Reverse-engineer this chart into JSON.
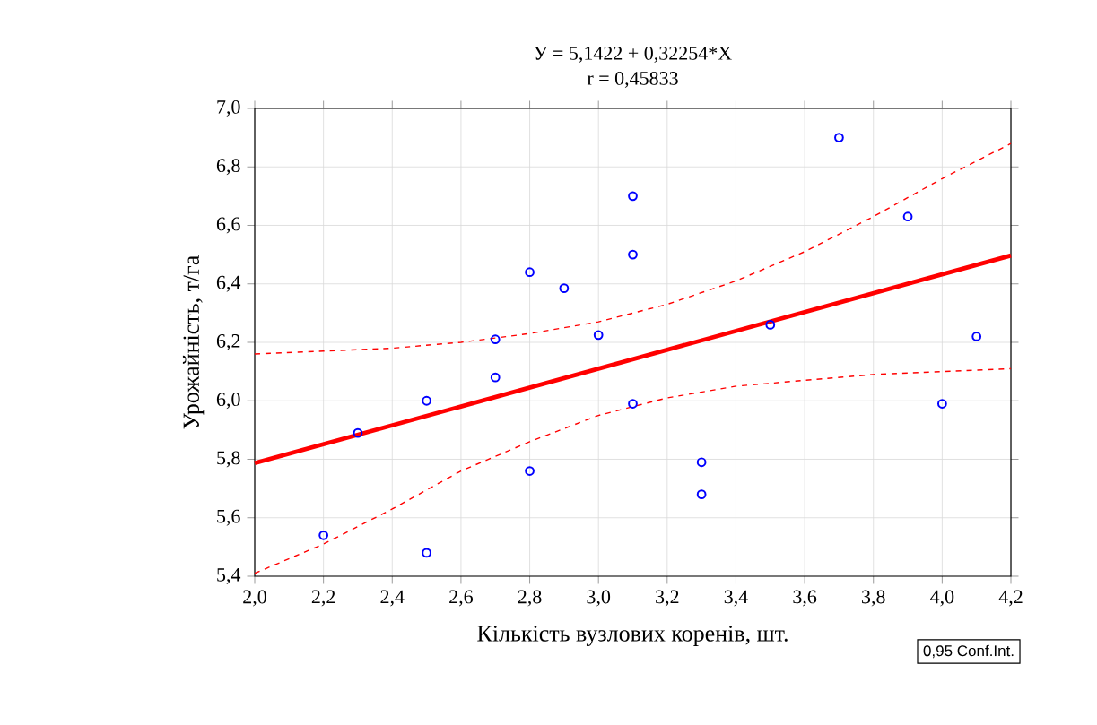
{
  "chart_data": {
    "type": "scatter",
    "title": "У = 5,1422 + 0,32254*X",
    "subtitle": "r = 0,45833",
    "xlabel": "Кількість вузлових коренів, шт.",
    "ylabel": "Урожайність, т/га",
    "annotations": [
      "0,95 Conf.Int."
    ],
    "xlim": [
      2.0,
      4.2
    ],
    "ylim": [
      5.4,
      7.0
    ],
    "xticks": [
      {
        "value": 2.0,
        "label": "2,0"
      },
      {
        "value": 2.2,
        "label": "2,2"
      },
      {
        "value": 2.4,
        "label": "2,4"
      },
      {
        "value": 2.6,
        "label": "2,6"
      },
      {
        "value": 2.8,
        "label": "2,8"
      },
      {
        "value": 3.0,
        "label": "3,0"
      },
      {
        "value": 3.2,
        "label": "3,2"
      },
      {
        "value": 3.4,
        "label": "3,4"
      },
      {
        "value": 3.6,
        "label": "3,6"
      },
      {
        "value": 3.8,
        "label": "3,8"
      },
      {
        "value": 4.0,
        "label": "4,0"
      },
      {
        "value": 4.2,
        "label": "4,2"
      }
    ],
    "yticks": [
      {
        "value": 5.4,
        "label": "5,4"
      },
      {
        "value": 5.6,
        "label": "5,6"
      },
      {
        "value": 5.8,
        "label": "5,8"
      },
      {
        "value": 6.0,
        "label": "6,0"
      },
      {
        "value": 6.2,
        "label": "6,2"
      },
      {
        "value": 6.4,
        "label": "6,4"
      },
      {
        "value": 6.6,
        "label": "6,6"
      },
      {
        "value": 6.8,
        "label": "6,8"
      },
      {
        "value": 7.0,
        "label": "7,0"
      }
    ],
    "grid": true,
    "series": [
      {
        "type": "scatter",
        "color": "#0000ff",
        "marker": "circle",
        "x": [
          2.2,
          2.3,
          2.5,
          2.5,
          2.7,
          2.7,
          2.8,
          2.8,
          2.9,
          3.0,
          3.1,
          3.1,
          3.1,
          3.3,
          3.3,
          3.5,
          3.7,
          3.9,
          4.0,
          4.1
        ],
        "values": [
          5.54,
          5.89,
          6.0,
          5.48,
          6.21,
          6.08,
          6.44,
          5.76,
          6.385,
          6.225,
          6.7,
          6.5,
          5.99,
          5.79,
          5.68,
          6.26,
          6.9,
          6.63,
          5.99,
          6.22
        ]
      },
      {
        "type": "line",
        "color": "#ff0000",
        "line_style": "solid",
        "x": [
          2.0,
          4.2
        ],
        "values": [
          5.787,
          6.497
        ]
      },
      {
        "type": "line",
        "color": "#ff0000",
        "line_style": "dashed",
        "x": [
          2.0,
          2.2,
          2.4,
          2.6,
          2.8,
          3.0,
          3.2,
          3.4,
          3.6,
          3.8,
          4.0,
          4.2
        ],
        "values": [
          6.16,
          6.17,
          6.18,
          6.2,
          6.23,
          6.27,
          6.33,
          6.41,
          6.51,
          6.63,
          6.76,
          6.88
        ]
      },
      {
        "type": "line",
        "color": "#ff0000",
        "line_style": "dashed",
        "x": [
          2.0,
          2.2,
          2.4,
          2.6,
          2.8,
          3.0,
          3.2,
          3.4,
          3.6,
          3.8,
          4.0,
          4.2
        ],
        "values": [
          5.41,
          5.51,
          5.63,
          5.76,
          5.86,
          5.95,
          6.01,
          6.05,
          6.07,
          6.09,
          6.1,
          6.11
        ]
      }
    ]
  }
}
